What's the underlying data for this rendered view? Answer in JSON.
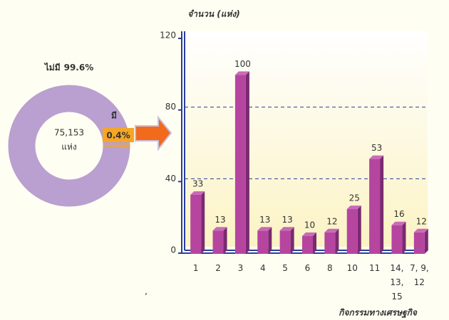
{
  "chart_data": [
    {
      "type": "pie",
      "donut": true,
      "categories": [
        "ไม่มี",
        "มี"
      ],
      "values": [
        99.6,
        0.4
      ],
      "value_labels": [
        "99.6%",
        "0.4%"
      ],
      "colors": [
        "#b9a0d0",
        "#f5a623"
      ],
      "center_text": [
        "75,153",
        "แห่ง"
      ]
    },
    {
      "type": "bar",
      "y_axis_label": "จำนวน (แห่ง)",
      "x_axis_label": "กิจกรรมทางเศรษฐกิจ",
      "categories": [
        "1",
        "2",
        "3",
        "4",
        "5",
        "6",
        "8",
        "10",
        "11",
        "14, 13, 15",
        "7, 9, 12"
      ],
      "values": [
        33,
        13,
        100,
        13,
        13,
        10,
        12,
        25,
        53,
        16,
        12
      ],
      "color": "#b5459f",
      "ylim": [
        0,
        120
      ],
      "yticks": [
        0,
        40,
        80,
        120
      ],
      "grid": true,
      "annotations": [
        ","
      ]
    }
  ]
}
